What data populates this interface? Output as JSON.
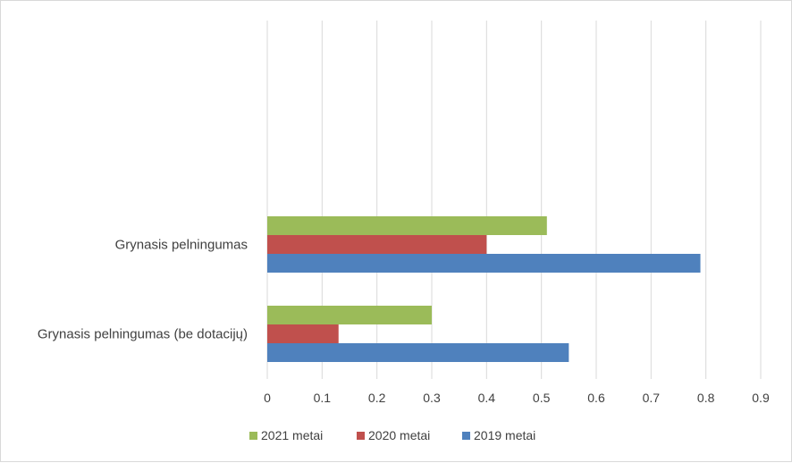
{
  "chart_data": {
    "type": "bar",
    "orientation": "horizontal",
    "categories": [
      "Grynasis pelningumas",
      "Grynasis pelningumas (be dotacijų)"
    ],
    "series": [
      {
        "name": "2021 metai",
        "color": "#9bbb59",
        "values": [
          0.51,
          0.3
        ]
      },
      {
        "name": "2020 metai",
        "color": "#c0504d",
        "values": [
          0.4,
          0.13
        ]
      },
      {
        "name": "2019 metai",
        "color": "#4f81bd",
        "values": [
          0.79,
          0.55
        ]
      }
    ],
    "xticks": [
      "0",
      "0.1",
      "0.2",
      "0.3",
      "0.4",
      "0.5",
      "0.6",
      "0.7",
      "0.8",
      "0.9"
    ],
    "xlim": [
      0,
      0.9
    ],
    "grid": true,
    "legend_position": "bottom"
  }
}
